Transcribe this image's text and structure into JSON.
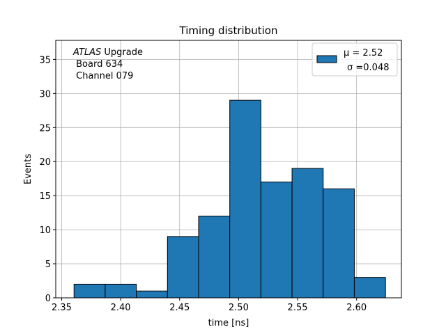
{
  "chart_data": {
    "type": "bar",
    "title": "Timing distribution",
    "xlabel": "time [ns]",
    "ylabel": "Events",
    "xlim": [
      2.345,
      2.638
    ],
    "ylim": [
      0,
      37.8
    ],
    "xticks": [
      2.35,
      2.4,
      2.45,
      2.5,
      2.55,
      2.6
    ],
    "xtick_labels": [
      "2.35",
      "2.40",
      "2.45",
      "2.50",
      "2.55",
      "2.60"
    ],
    "yticks": [
      0,
      5,
      10,
      15,
      20,
      25,
      30,
      35
    ],
    "ytick_labels": [
      "0",
      "5",
      "10",
      "15",
      "20",
      "25",
      "30",
      "35"
    ],
    "grid": true,
    "bin_edges": [
      2.3605,
      2.3869,
      2.4133,
      2.4397,
      2.4661,
      2.4925,
      2.5189,
      2.5453,
      2.5717,
      2.5981,
      2.6245
    ],
    "counts": [
      2,
      2,
      1,
      9,
      12,
      29,
      17,
      19,
      16,
      3
    ],
    "bar_color": "#1f77b4",
    "edge_color": "#000000",
    "legend": {
      "placement": "top-right",
      "line1": "μ = 2.52",
      "line2": "σ =0.048"
    },
    "annotation": {
      "line1_italic": "ATLAS",
      "line1_rest": " Upgrade",
      "line2": " Board 634",
      "line3": " Channel 079"
    }
  }
}
